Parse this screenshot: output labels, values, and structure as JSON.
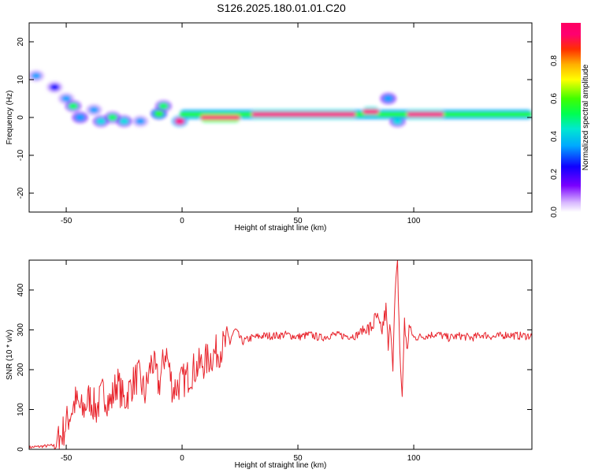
{
  "title": "S126.2025.180.01.01.C20",
  "chart_data": [
    {
      "type": "heatmap",
      "title": "",
      "xlabel": "Height of straight line (km)",
      "ylabel": "Frequency (Hz)",
      "xlim": [
        -66,
        151
      ],
      "ylim": [
        -25,
        25
      ],
      "xticks": [
        -50,
        0,
        50,
        100
      ],
      "yticks": [
        20,
        10,
        0,
        -10,
        -20
      ],
      "colorbar": {
        "label": "Normalized spectral amplitude",
        "range": [
          0.0,
          1.0
        ],
        "ticks": [
          0.0,
          0.2,
          0.4,
          0.6,
          0.8
        ],
        "colormap": [
          "#ffffff",
          "#c8a0ff",
          "#7a00ff",
          "#0000ff",
          "#00a0ff",
          "#00e0e0",
          "#00ff60",
          "#20ff00",
          "#ffff00",
          "#ffb000",
          "#ff3000",
          "#ff0080",
          "#ff0060"
        ]
      },
      "bands": [
        {
          "x": [
            -1,
            151
          ],
          "freq": 0.8,
          "amplitude": 0.6
        },
        {
          "x": [
            8,
            25
          ],
          "freq": 0.0,
          "amplitude": 0.95
        },
        {
          "x": [
            30,
            75
          ],
          "freq": 0.8,
          "amplitude": 0.9
        },
        {
          "x": [
            78,
            85
          ],
          "freq": 1.5,
          "amplitude": 0.9
        },
        {
          "x": [
            97,
            113
          ],
          "freq": 0.8,
          "amplitude": 0.9
        }
      ],
      "blobs": [
        {
          "x": -63,
          "freq": 11,
          "amplitude": 0.3
        },
        {
          "x": -55,
          "freq": 8,
          "amplitude": 0.25
        },
        {
          "x": -50,
          "freq": 5,
          "amplitude": 0.3
        },
        {
          "x": -47,
          "freq": 3,
          "amplitude": 0.5
        },
        {
          "x": -44,
          "freq": 0,
          "amplitude": 0.35
        },
        {
          "x": -38,
          "freq": 2,
          "amplitude": 0.3
        },
        {
          "x": -35,
          "freq": -1,
          "amplitude": 0.4
        },
        {
          "x": -30,
          "freq": 0,
          "amplitude": 0.5
        },
        {
          "x": -25,
          "freq": -1,
          "amplitude": 0.45
        },
        {
          "x": -18,
          "freq": -1,
          "amplitude": 0.3
        },
        {
          "x": -10,
          "freq": 1,
          "amplitude": 0.6
        },
        {
          "x": -8,
          "freq": 3,
          "amplitude": 0.5
        },
        {
          "x": -1,
          "freq": -1,
          "amplitude": 0.9
        },
        {
          "x": 89,
          "freq": 5,
          "amplitude": 0.35
        },
        {
          "x": 93,
          "freq": -1,
          "amplitude": 0.4
        }
      ]
    },
    {
      "type": "line",
      "title": "",
      "xlabel": "Height of straight line (km)",
      "ylabel": "SNR (10 * v/v)",
      "xlim": [
        -66,
        151
      ],
      "ylim": [
        0,
        475
      ],
      "xticks": [
        -50,
        0,
        50,
        100
      ],
      "yticks": [
        0,
        100,
        200,
        300,
        400
      ],
      "series": [
        {
          "color": "#e8242c",
          "x": [
            -66,
            -55,
            -52,
            -49,
            -46,
            -43,
            -40,
            -37,
            -34,
            -31,
            -28,
            -25,
            -22,
            -19,
            -16,
            -13,
            -10,
            -7,
            -4,
            -1,
            2,
            5,
            10,
            15,
            20,
            23,
            26,
            30,
            35,
            40,
            45,
            50,
            55,
            60,
            65,
            70,
            75,
            78,
            81,
            84,
            86,
            88,
            89,
            90,
            91,
            92,
            93,
            94,
            95,
            96,
            97,
            98,
            100,
            105,
            110,
            115,
            120,
            125,
            130,
            135,
            140,
            145,
            151
          ],
          "y": [
            5,
            10,
            35,
            80,
            120,
            95,
            130,
            100,
            145,
            115,
            170,
            120,
            160,
            185,
            140,
            225,
            160,
            250,
            150,
            165,
            180,
            200,
            220,
            245,
            270,
            300,
            270,
            280,
            285,
            285,
            288,
            282,
            288,
            280,
            288,
            285,
            285,
            300,
            300,
            330,
            290,
            350,
            250,
            320,
            220,
            390,
            460,
            250,
            120,
            330,
            240,
            310,
            280,
            285,
            290,
            280,
            285,
            280,
            288,
            282,
            288,
            285,
            285
          ]
        }
      ]
    }
  ]
}
